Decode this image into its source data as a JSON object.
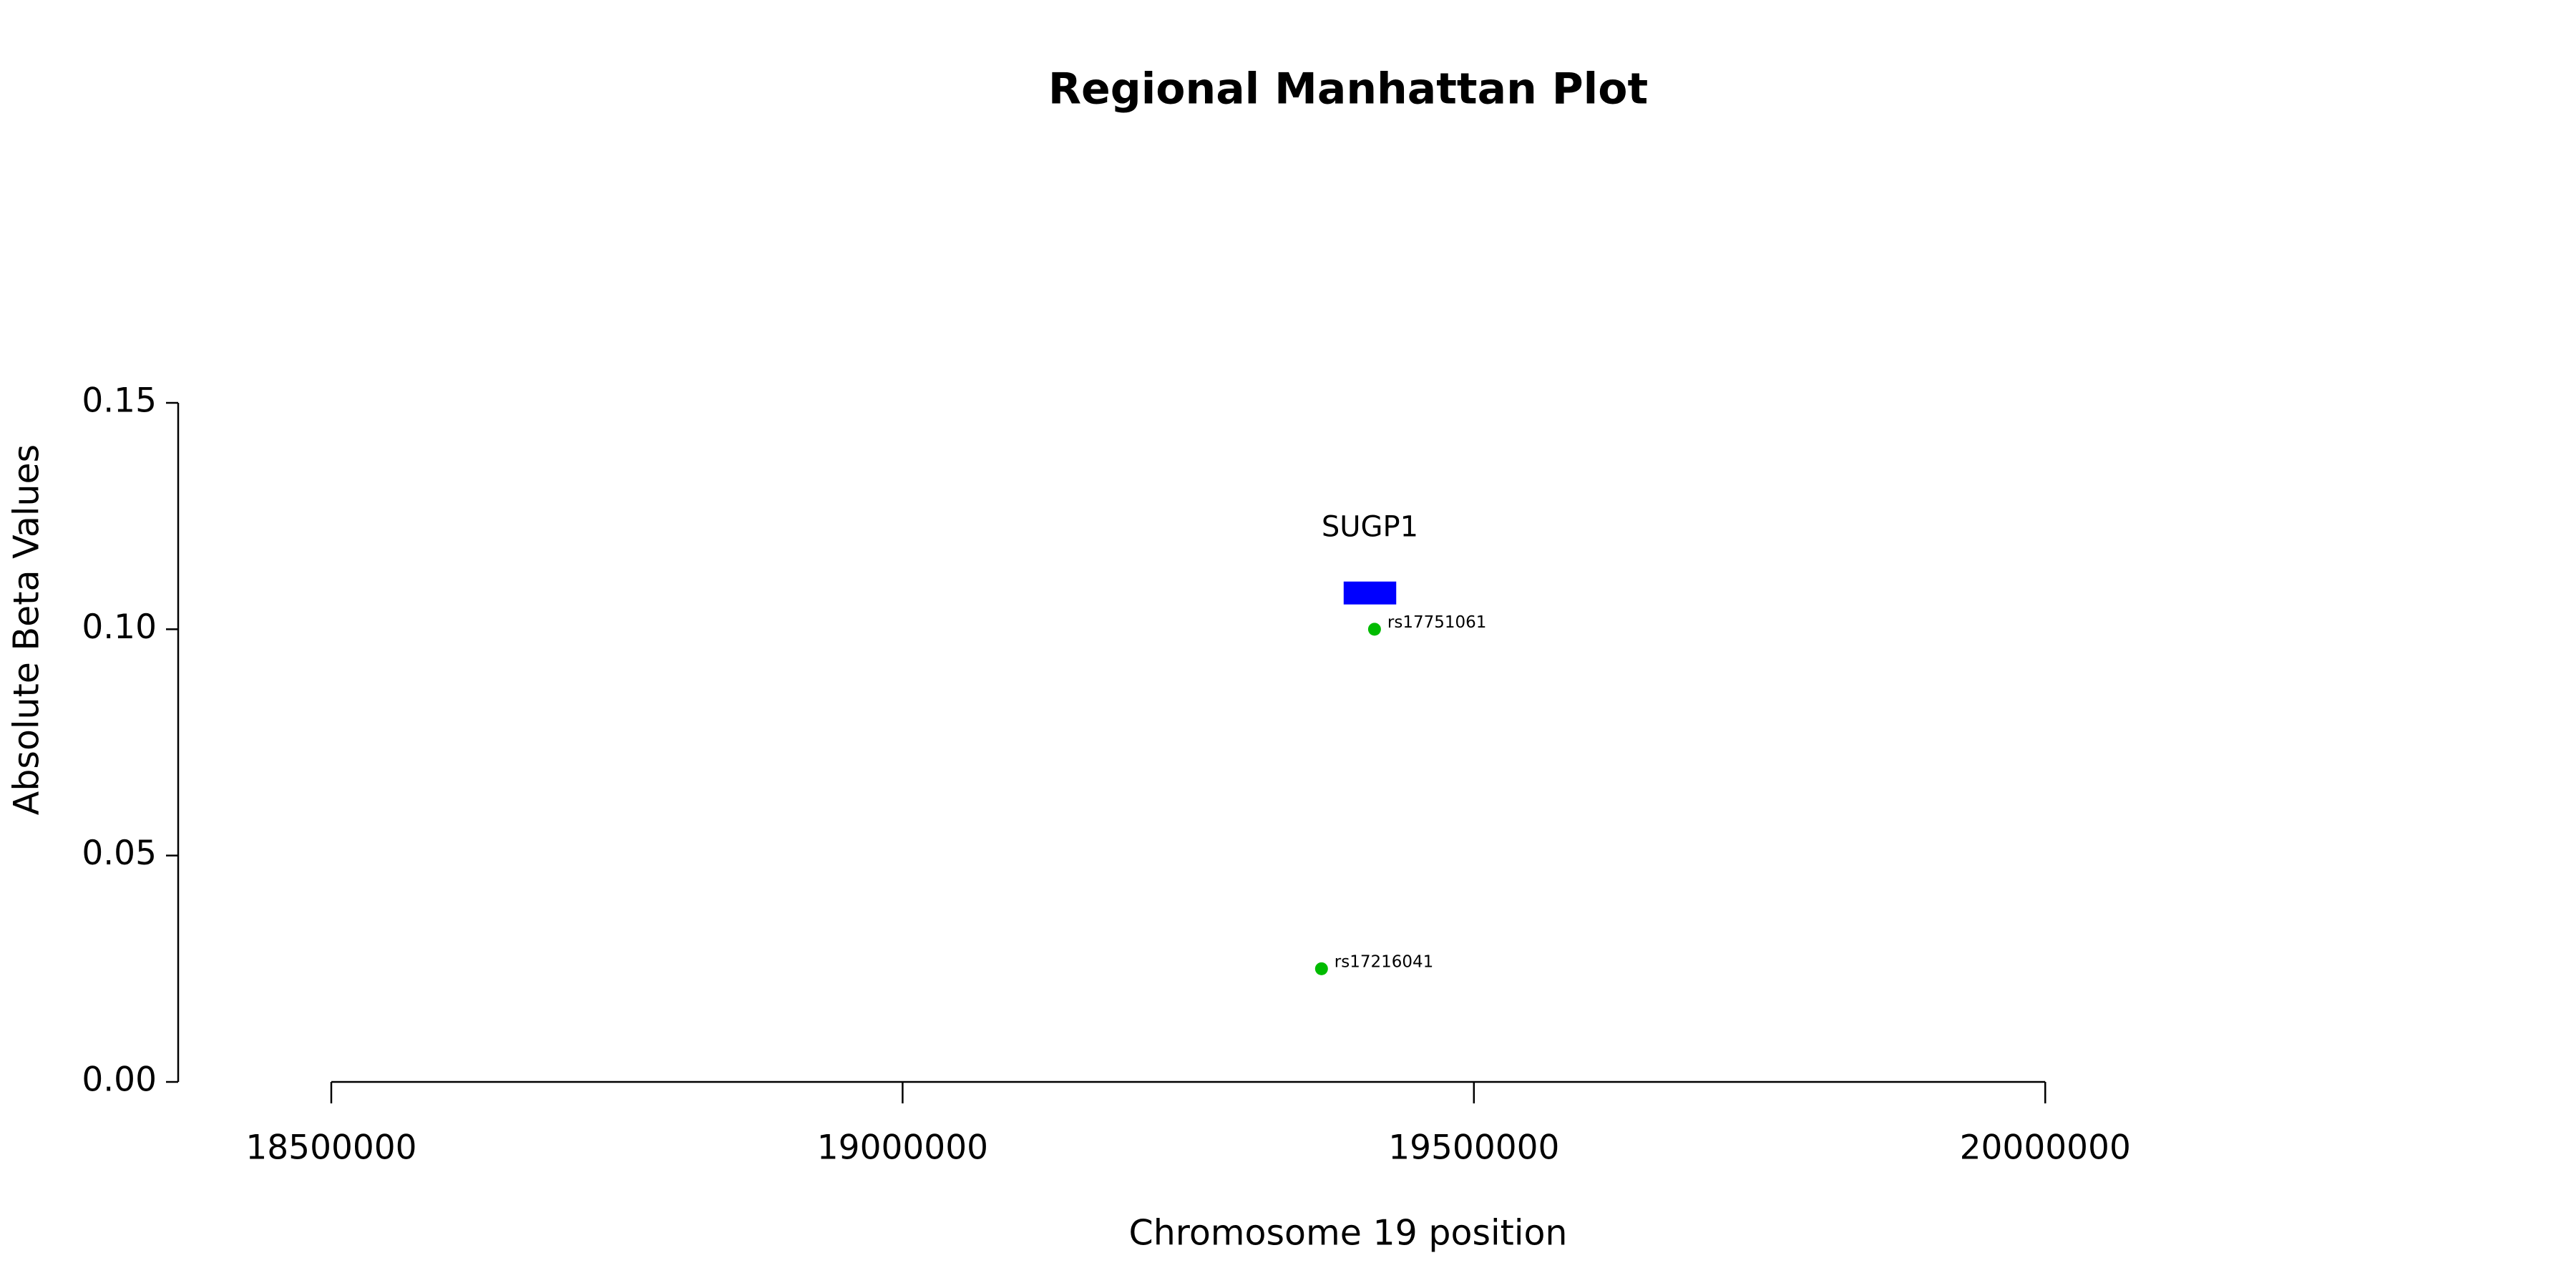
{
  "chart_data": {
    "type": "scatter",
    "title": "Regional Manhattan Plot",
    "x_label": "Chromosome 19 position",
    "y_label": "Absolute Beta Values",
    "x": [
      19366600,
      19413000
    ],
    "values": [
      0.025,
      0.1
    ],
    "point_labels": [
      "rs17216041",
      "rs17751061"
    ],
    "color": "#00bb00",
    "genes": [
      {
        "name": "SUGP1",
        "start": 19386000,
        "end": 19432000,
        "y": 0.108,
        "color": "#0000ff"
      }
    ],
    "xlim": [
      18366000,
      20395000
    ],
    "xticks": [
      18500000,
      19000000,
      19500000,
      20000000
    ],
    "ylim": [
      0,
      0.15
    ],
    "yticks": [
      {
        "value": 0,
        "label": "0.00"
      },
      {
        "value": 0.05,
        "label": "0.05"
      },
      {
        "value": 0.1,
        "label": "0.10"
      },
      {
        "value": 0.15,
        "label": "0.15"
      }
    ],
    "grid": false
  }
}
